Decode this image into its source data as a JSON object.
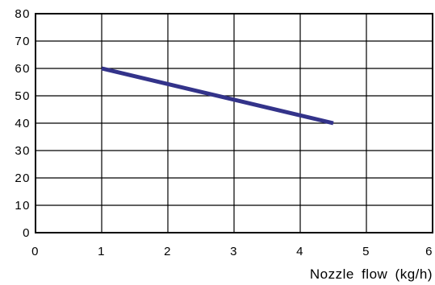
{
  "chart_data": {
    "type": "line",
    "title": "",
    "xlabel": "Nozzle flow (kg/h)",
    "ylabel": "",
    "xlim": [
      0,
      6
    ],
    "ylim": [
      0,
      80
    ],
    "grid": true,
    "x_ticks": [
      "0",
      "1",
      "2",
      "3",
      "4",
      "5",
      "6"
    ],
    "y_ticks": [
      "80",
      "70",
      "60",
      "50",
      "40",
      "30",
      "20",
      "10",
      "0"
    ],
    "series": [
      {
        "color": "#33338a",
        "x": [
          1.0,
          4.5
        ],
        "y": [
          60,
          40
        ]
      }
    ]
  }
}
